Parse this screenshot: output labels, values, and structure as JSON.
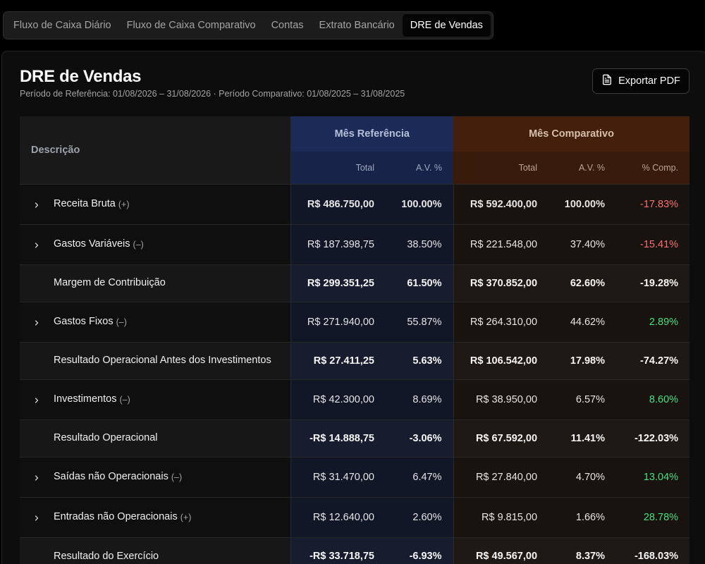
{
  "tabs": [
    {
      "label": "Fluxo de Caixa Diário"
    },
    {
      "label": "Fluxo de Caixa Comparativo"
    },
    {
      "label": "Contas"
    },
    {
      "label": "Extrato Bancário"
    },
    {
      "label": "DRE de Vendas",
      "active": true
    }
  ],
  "header": {
    "title": "DRE de Vendas",
    "subtitle": "Período de Referência: 01/08/2026 – 31/08/2026 · Período Comparativo: 01/08/2025 – 31/08/2025",
    "export_label": "Exportar PDF",
    "export_icon": "file-text-icon"
  },
  "table": {
    "col_description": "Descrição",
    "group_reference": "Mês Referência",
    "group_comparative": "Mês Comparativo",
    "sub_total": "Total",
    "sub_av": "A.V. %",
    "sub_comp": "% Comp.",
    "rows": [
      {
        "label": "Receita Bruta",
        "sign": "(+)",
        "expandable": true,
        "bold": true,
        "ref_total": "R$ 486.750,00",
        "ref_av": "100.00%",
        "cmp_total": "R$ 592.400,00",
        "cmp_av": "100.00%",
        "comp": "-17.83%",
        "trend": "neg"
      },
      {
        "label": "Gastos Variáveis",
        "sign": "(–)",
        "expandable": true,
        "bold": false,
        "ref_total": "R$ 187.398,75",
        "ref_av": "38.50%",
        "cmp_total": "R$ 221.548,00",
        "cmp_av": "37.40%",
        "comp": "-15.41%",
        "trend": "neg"
      },
      {
        "label": "Margem de Contribuição",
        "sign": "",
        "expandable": false,
        "bold": true,
        "ref_total": "R$ 299.351,25",
        "ref_av": "61.50%",
        "cmp_total": "R$ 370.852,00",
        "cmp_av": "62.60%",
        "comp": "-19.28%",
        "trend": "neg"
      },
      {
        "label": "Gastos Fixos",
        "sign": "(–)",
        "expandable": true,
        "bold": false,
        "ref_total": "R$ 271.940,00",
        "ref_av": "55.87%",
        "cmp_total": "R$ 264.310,00",
        "cmp_av": "44.62%",
        "comp": "2.89%",
        "trend": "pos"
      },
      {
        "label": "Resultado Operacional Antes dos Investimentos",
        "sign": "",
        "expandable": false,
        "bold": true,
        "ref_total": "R$ 27.411,25",
        "ref_av": "5.63%",
        "cmp_total": "R$ 106.542,00",
        "cmp_av": "17.98%",
        "comp": "-74.27%",
        "trend": "neg"
      },
      {
        "label": "Investimentos",
        "sign": "(–)",
        "expandable": true,
        "bold": false,
        "ref_total": "R$ 42.300,00",
        "ref_av": "8.69%",
        "cmp_total": "R$ 38.950,00",
        "cmp_av": "6.57%",
        "comp": "8.60%",
        "trend": "pos"
      },
      {
        "label": "Resultado Operacional",
        "sign": "",
        "expandable": false,
        "bold": true,
        "ref_total": "-R$ 14.888,75",
        "ref_av": "-3.06%",
        "cmp_total": "R$ 67.592,00",
        "cmp_av": "11.41%",
        "comp": "-122.03%",
        "trend": "neg"
      },
      {
        "label": "Saídas não Operacionais",
        "sign": "(–)",
        "expandable": true,
        "bold": false,
        "ref_total": "R$ 31.470,00",
        "ref_av": "6.47%",
        "cmp_total": "R$ 27.840,00",
        "cmp_av": "4.70%",
        "comp": "13.04%",
        "trend": "pos"
      },
      {
        "label": "Entradas não Operacionais",
        "sign": "(+)",
        "expandable": true,
        "bold": false,
        "ref_total": "R$ 12.640,00",
        "ref_av": "2.60%",
        "cmp_total": "R$ 9.815,00",
        "cmp_av": "1.66%",
        "comp": "28.78%",
        "trend": "pos"
      },
      {
        "label": "Resultado do Exercício",
        "sign": "",
        "expandable": false,
        "bold": true,
        "ref_total": "-R$ 33.718,75",
        "ref_av": "-6.93%",
        "cmp_total": "R$ 49.567,00",
        "cmp_av": "8.37%",
        "comp": "-168.03%",
        "trend": "neg"
      }
    ]
  }
}
